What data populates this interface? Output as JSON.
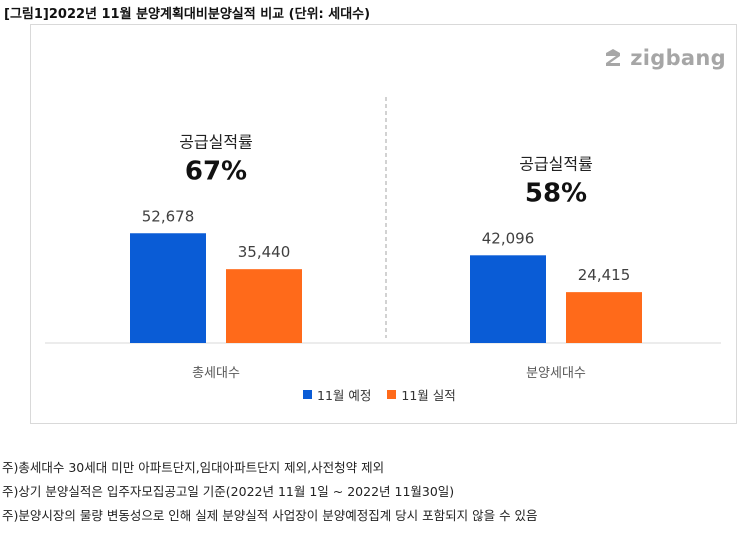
{
  "figure_title": "[그림1]2022년 11월 분양계획대비분양실적 비교 (단위: 세대수)",
  "logo": {
    "text": "zigbang",
    "icon": "zigbang-logo-icon",
    "color": "#a6a6a6"
  },
  "chart_data": {
    "type": "bar",
    "categories": [
      "총세대수",
      "분양세대수"
    ],
    "series": [
      {
        "name": "11월 예정",
        "values": [
          52678,
          42096
        ],
        "color": "#0a5cd6"
      },
      {
        "name": "11월 실적",
        "values": [
          35440,
          24415
        ],
        "color": "#ff6a1a"
      }
    ],
    "value_labels": [
      [
        "52,678",
        "35,440"
      ],
      [
        "42,096",
        "24,415"
      ]
    ],
    "annotations": [
      {
        "label": "공급실적률",
        "value": "67%"
      },
      {
        "label": "공급실적률",
        "value": "58%"
      }
    ],
    "title": "",
    "xlabel": "",
    "ylabel": "",
    "ylim": [
      0,
      120000
    ],
    "grid": false,
    "legend_position": "bottom-center",
    "separator": "dashed-vertical"
  },
  "notes": [
    "주)총세대수 30세대 미만 아파트단지,임대아파트단지 제외,사전청약 제외",
    "주)상기 분양실적은 입주자모집공고일 기준(2022년 11월 1일 ~ 2022년 11월30일)",
    "주)분양시장의 물량 변동성으로 인해 실제 분양실적 사업장이 분양예정집계 당시 포함되지 않을 수 있음"
  ]
}
